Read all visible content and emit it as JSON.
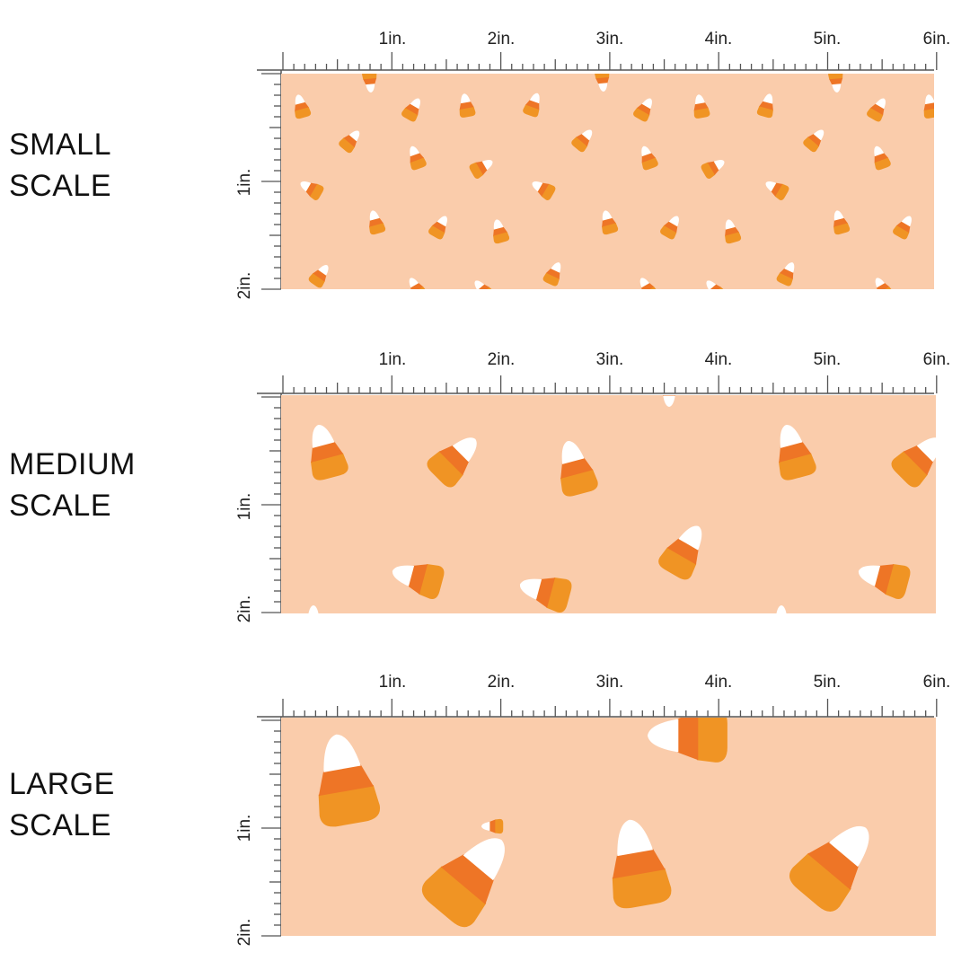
{
  "colors": {
    "swatch_background": "#FACCAB",
    "candy_base": "#F09424",
    "candy_middle": "#EE7526",
    "candy_tip": "#FFFFFF",
    "ruler_line": "#555555",
    "label_text": "#111111"
  },
  "ruler": {
    "horizontal_labels": [
      "1in.",
      "2in.",
      "3in.",
      "4in.",
      "5in.",
      "6in."
    ],
    "vertical_labels": [
      "1in.",
      "2in."
    ]
  },
  "panels": [
    {
      "id": "small",
      "label_line1": "SMALL",
      "label_line2": "SCALE",
      "pattern_icon": "candy-corn-icon",
      "motif_size": "small"
    },
    {
      "id": "medium",
      "label_line1": "MEDIUM",
      "label_line2": "SCALE",
      "pattern_icon": "candy-corn-icon",
      "motif_size": "medium"
    },
    {
      "id": "large",
      "label_line1": "LARGE",
      "label_line2": "SCALE",
      "pattern_icon": "candy-corn-icon",
      "motif_size": "large"
    }
  ]
}
